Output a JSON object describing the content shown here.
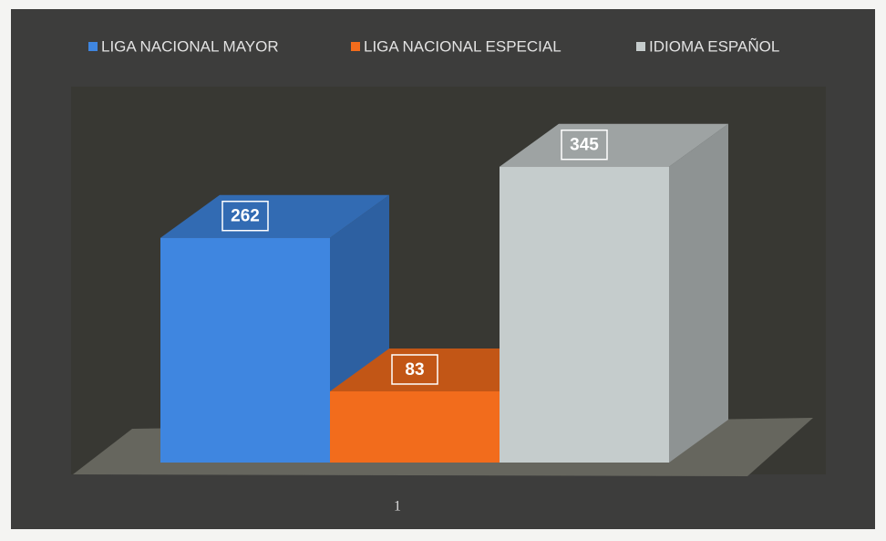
{
  "chart_data": {
    "type": "bar3d",
    "categories": [
      "1"
    ],
    "series": [
      {
        "name": "LIGA NACIONAL  MAYOR",
        "color": "#3f86e0",
        "values": [
          262
        ]
      },
      {
        "name": "LIGA NACIONAL  ESPECIAL",
        "color": "#f26c1c",
        "values": [
          83
        ]
      },
      {
        "name": "IDIOMA  ESPAÑOL",
        "color": "#c5cccc",
        "values": [
          345
        ]
      }
    ]
  }
}
